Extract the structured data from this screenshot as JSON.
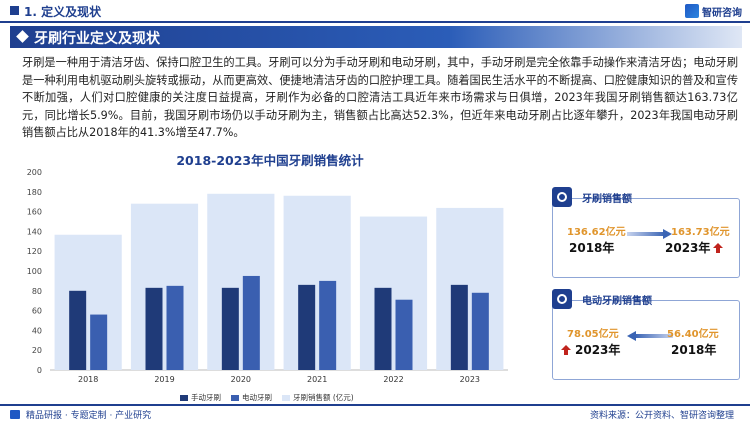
{
  "header": {
    "section_title": "1. 定义及现状",
    "brand": "智研咨询",
    "icons": [
      "square-icon",
      "logo-icon"
    ]
  },
  "banner": {
    "title": "牙刷行业定义及现状"
  },
  "paragraph": "牙刷是一种用于清洁牙齿、保持口腔卫生的工具。牙刷可以分为手动牙刷和电动牙刷，其中，手动牙刷是完全依靠手动操作来清洁牙齿；电动牙刷是一种利用电机驱动刷头旋转或振动，从而更高效、便捷地清洁牙齿的口腔护理工具。随着国民生活水平的不断提高、口腔健康知识的普及和宣传不断加强，人们对口腔健康的关注度日益提高，牙刷作为必备的口腔清洁工具近年来市场需求与日俱增，2023年我国牙刷销售额达163.73亿元，同比增长5.9%。目前，我国牙刷市场仍以手动牙刷为主，销售额占比高达52.3%，但近年来电动牙刷占比逐年攀升，2023年我国电动牙刷销售额占比从2018年的41.3%增至47.7%。",
  "chart_data": {
    "type": "bar",
    "title": "2018-2023年中国牙刷销售统计",
    "categories": [
      "2018",
      "2019",
      "2020",
      "2021",
      "2022",
      "2023"
    ],
    "series": [
      {
        "name": "手动牙刷",
        "values": [
          80,
          83,
          83,
          86,
          83,
          86
        ],
        "color": "#1f3a78"
      },
      {
        "name": "电动牙刷",
        "values": [
          56,
          85,
          95,
          90,
          71,
          78
        ],
        "color": "#3a5fb0"
      },
      {
        "name": "牙刷销售额 (亿元)",
        "values": [
          136.62,
          168,
          178,
          176,
          155,
          163.73
        ],
        "color": "#dbe6f7"
      }
    ],
    "ylim": [
      0,
      200
    ],
    "yticks": [
      0,
      20,
      40,
      60,
      80,
      100,
      120,
      140,
      160,
      180,
      200
    ],
    "grid": false,
    "legend": "bottom"
  },
  "panels": {
    "sales": {
      "title": "牙刷销售额",
      "icon": "toothbrush-icon",
      "from_value": "136.62亿元",
      "from_year": "2018年",
      "to_value": "163.73亿元",
      "to_year": "2023年",
      "trend": "up"
    },
    "electric": {
      "title": "电动牙刷销售额",
      "icon": "electric-toothbrush-icon",
      "left_value": "78.05亿元",
      "left_year": "2023年",
      "right_value": "56.40亿元",
      "right_year": "2018年",
      "trend": "up"
    }
  },
  "footer": {
    "left": "精品研报 · 专题定制 · 产业研究",
    "right": "资料来源：公开资料、智研咨询整理"
  },
  "colors": {
    "primary": "#1f3f8f",
    "accent": "#e0952c",
    "up_arrow": "#c0231c"
  }
}
